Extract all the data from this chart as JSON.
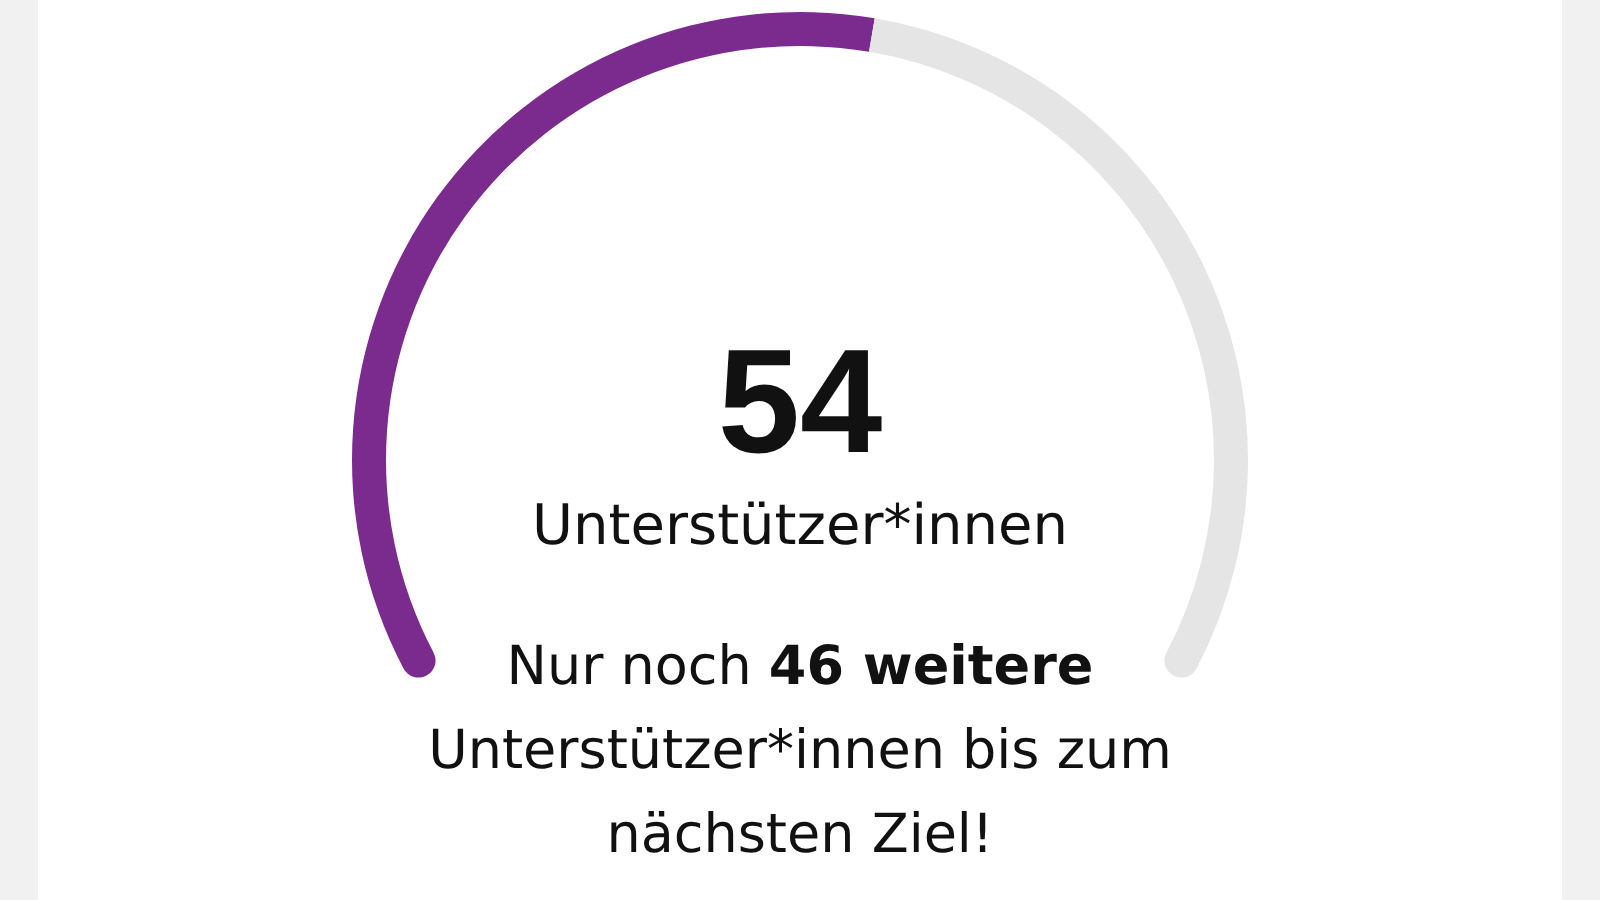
{
  "chart_data": {
    "type": "donut",
    "categories": [
      null,
      null
    ],
    "values": [
      54,
      46
    ],
    "colors": [
      "#7b2a8e",
      "#e5e5e5"
    ],
    "annotations": [
      "54",
      "Unterstützer*innen",
      "Nur noch",
      "46 weitere",
      "Unterstützer*innen bis zum nächsten Ziel!"
    ]
  }
}
